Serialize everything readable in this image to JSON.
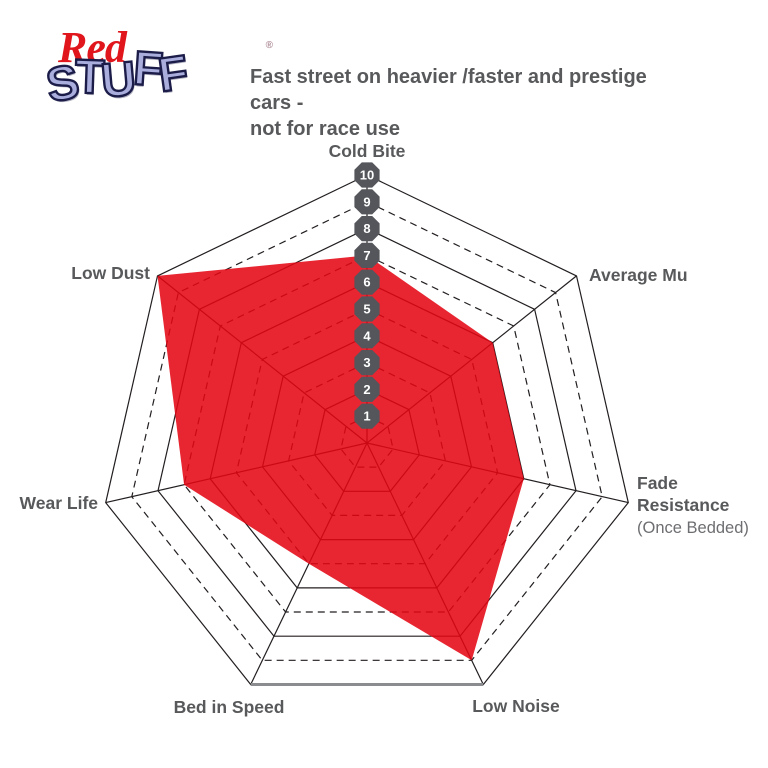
{
  "logo": {
    "brand_line1": "Red",
    "reg_mark": "®",
    "brand_line2": "STUFF"
  },
  "header": {
    "description_lines": [
      "Fast street on heavier /faster and prestige cars -",
      "not for race use"
    ]
  },
  "chart_data": {
    "type": "radar",
    "title": "Fast street on heavier /faster and prestige cars - not for race use",
    "scale": {
      "min": 0,
      "max": 10,
      "step": 1,
      "tick_labels": [
        "1",
        "2",
        "3",
        "4",
        "5",
        "6",
        "7",
        "8",
        "9",
        "10"
      ]
    },
    "axes": [
      "Cold Bite",
      "Average Mu",
      "Fade Resistance",
      "Low Noise",
      "Bed in Speed",
      "Wear Life",
      "Low Dust"
    ],
    "axis_sublabels": {
      "Fade Resistance": "(Once Bedded)"
    },
    "series": [
      {
        "name": "RedStuff",
        "values": [
          7,
          6,
          6,
          9,
          5,
          7,
          10
        ],
        "fill_color": "#e30613",
        "fill_opacity": 0.87
      }
    ],
    "grid": {
      "rings": 10,
      "even_rings": "solid",
      "odd_rings": "dashed",
      "line_color": "#231f20",
      "baseline_color": "#8a8c8f"
    },
    "badge_color": "#54565b",
    "badge_text_color": "#ffffff",
    "label_color": "#58595b"
  }
}
